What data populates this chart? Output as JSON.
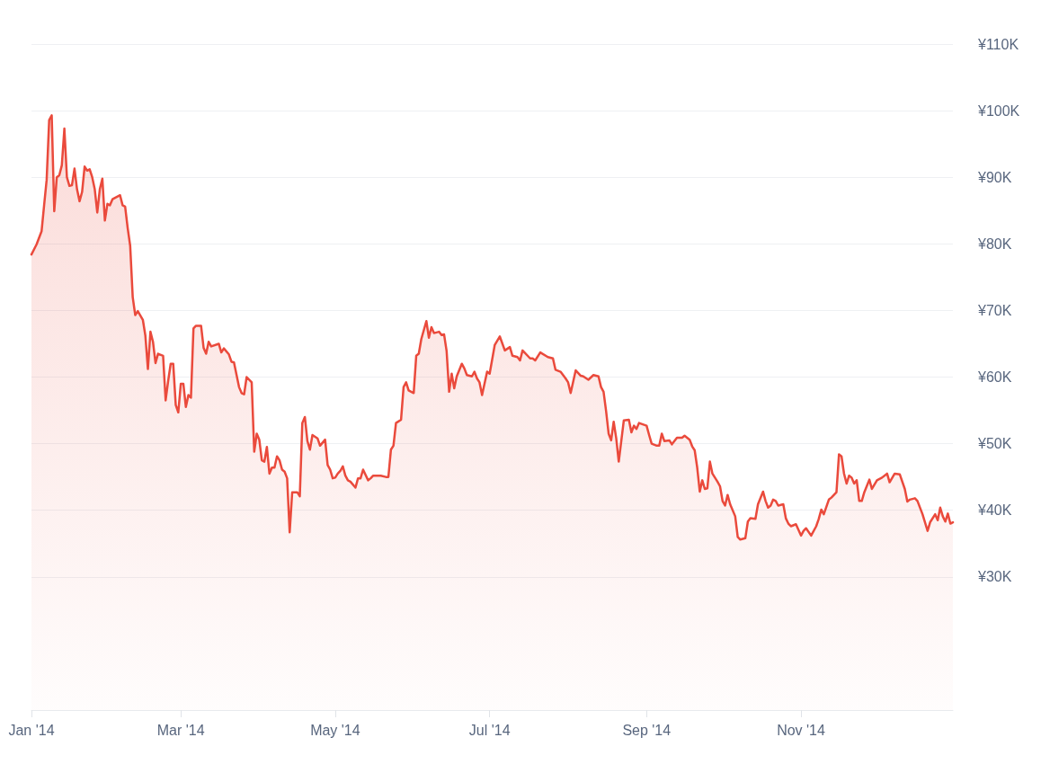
{
  "chart_data": {
    "type": "area",
    "grid": "y",
    "marker": "none",
    "line_style": "solid",
    "xlim": [
      "2014-01-01",
      "2014-12-31"
    ],
    "xticks": [
      {
        "value": "2014-01-01",
        "label": "Jan '14"
      },
      {
        "value": "2014-03-01",
        "label": "Mar '14"
      },
      {
        "value": "2014-05-01",
        "label": "May '14"
      },
      {
        "value": "2014-07-01",
        "label": "Jul '14"
      },
      {
        "value": "2014-09-01",
        "label": "Sep '14"
      },
      {
        "value": "2014-11-01",
        "label": "Nov '14"
      }
    ],
    "ylim": [
      10000,
      110000
    ],
    "yticks": [
      {
        "value": 30000,
        "label": "¥30K"
      },
      {
        "value": 40000,
        "label": "¥40K"
      },
      {
        "value": 50000,
        "label": "¥50K"
      },
      {
        "value": 60000,
        "label": "¥60K"
      },
      {
        "value": 70000,
        "label": "¥70K"
      },
      {
        "value": 80000,
        "label": "¥80K"
      },
      {
        "value": 90000,
        "label": "¥90K"
      },
      {
        "value": 100000,
        "label": "¥100K"
      },
      {
        "value": 110000,
        "label": "¥110K"
      }
    ],
    "x": [
      "2014-01-01",
      "2014-01-03",
      "2014-01-05",
      "2014-01-06",
      "2014-01-07",
      "2014-01-08",
      "2014-01-09",
      "2014-01-10",
      "2014-01-11",
      "2014-01-12",
      "2014-01-13",
      "2014-01-14",
      "2014-01-15",
      "2014-01-16",
      "2014-01-17",
      "2014-01-18",
      "2014-01-19",
      "2014-01-20",
      "2014-01-21",
      "2014-01-22",
      "2014-01-23",
      "2014-01-24",
      "2014-01-25",
      "2014-01-26",
      "2014-01-27",
      "2014-01-28",
      "2014-01-29",
      "2014-01-30",
      "2014-01-31",
      "2014-02-01",
      "2014-02-02",
      "2014-02-03",
      "2014-02-04",
      "2014-02-05",
      "2014-02-06",
      "2014-02-07",
      "2014-02-08",
      "2014-02-09",
      "2014-02-10",
      "2014-02-11",
      "2014-02-12",
      "2014-02-14",
      "2014-02-15",
      "2014-02-16",
      "2014-02-17",
      "2014-02-18",
      "2014-02-19",
      "2014-02-20",
      "2014-02-22",
      "2014-02-23",
      "2014-02-24",
      "2014-02-25",
      "2014-02-26",
      "2014-02-27",
      "2014-02-28",
      "2014-03-01",
      "2014-03-02",
      "2014-03-03",
      "2014-03-04",
      "2014-03-05",
      "2014-03-06",
      "2014-03-07",
      "2014-03-09",
      "2014-03-10",
      "2014-03-11",
      "2014-03-12",
      "2014-03-13",
      "2014-03-16",
      "2014-03-17",
      "2014-03-18",
      "2014-03-20",
      "2014-03-21",
      "2014-03-22",
      "2014-03-24",
      "2014-03-25",
      "2014-03-26",
      "2014-03-27",
      "2014-03-29",
      "2014-03-30",
      "2014-03-31",
      "2014-04-01",
      "2014-04-02",
      "2014-04-03",
      "2014-04-04",
      "2014-04-05",
      "2014-04-06",
      "2014-04-07",
      "2014-04-08",
      "2014-04-09",
      "2014-04-10",
      "2014-04-11",
      "2014-04-12",
      "2014-04-13",
      "2014-04-14",
      "2014-04-16",
      "2014-04-17",
      "2014-04-18",
      "2014-04-19",
      "2014-04-20",
      "2014-04-21",
      "2014-04-22",
      "2014-04-24",
      "2014-04-25",
      "2014-04-27",
      "2014-04-28",
      "2014-04-29",
      "2014-04-30",
      "2014-05-01",
      "2014-05-02",
      "2014-05-03",
      "2014-05-04",
      "2014-05-05",
      "2014-05-06",
      "2014-05-07",
      "2014-05-09",
      "2014-05-10",
      "2014-05-11",
      "2014-05-12",
      "2014-05-14",
      "2014-05-15",
      "2014-05-16",
      "2014-05-19",
      "2014-05-21",
      "2014-05-22",
      "2014-05-23",
      "2014-05-24",
      "2014-05-25",
      "2014-05-27",
      "2014-05-28",
      "2014-05-29",
      "2014-05-30",
      "2014-06-01",
      "2014-06-02",
      "2014-06-03",
      "2014-06-04",
      "2014-06-06",
      "2014-06-07",
      "2014-06-08",
      "2014-06-09",
      "2014-06-11",
      "2014-06-12",
      "2014-06-13",
      "2014-06-14",
      "2014-06-15",
      "2014-06-16",
      "2014-06-17",
      "2014-06-18",
      "2014-06-20",
      "2014-06-21",
      "2014-06-22",
      "2014-06-24",
      "2014-06-25",
      "2014-06-26",
      "2014-06-27",
      "2014-06-28",
      "2014-06-30",
      "2014-07-01",
      "2014-07-03",
      "2014-07-05",
      "2014-07-07",
      "2014-07-09",
      "2014-07-10",
      "2014-07-12",
      "2014-07-13",
      "2014-07-14",
      "2014-07-17",
      "2014-07-18",
      "2014-07-19",
      "2014-07-21",
      "2014-07-24",
      "2014-07-26",
      "2014-07-27",
      "2014-07-29",
      "2014-07-31",
      "2014-08-01",
      "2014-08-02",
      "2014-08-04",
      "2014-08-06",
      "2014-08-07",
      "2014-08-09",
      "2014-08-11",
      "2014-08-13",
      "2014-08-14",
      "2014-08-15",
      "2014-08-16",
      "2014-08-17",
      "2014-08-18",
      "2014-08-19",
      "2014-08-20",
      "2014-08-21",
      "2014-08-23",
      "2014-08-25",
      "2014-08-26",
      "2014-08-27",
      "2014-08-28",
      "2014-08-29",
      "2014-09-01",
      "2014-09-02",
      "2014-09-03",
      "2014-09-05",
      "2014-09-06",
      "2014-09-07",
      "2014-09-08",
      "2014-09-10",
      "2014-09-11",
      "2014-09-13",
      "2014-09-15",
      "2014-09-16",
      "2014-09-18",
      "2014-09-19",
      "2014-09-20",
      "2014-09-21",
      "2014-09-22",
      "2014-09-23",
      "2014-09-24",
      "2014-09-25",
      "2014-09-26",
      "2014-09-27",
      "2014-09-29",
      "2014-09-30",
      "2014-10-01",
      "2014-10-02",
      "2014-10-03",
      "2014-10-04",
      "2014-10-06",
      "2014-10-07",
      "2014-10-08",
      "2014-10-10",
      "2014-10-11",
      "2014-10-12",
      "2014-10-14",
      "2014-10-15",
      "2014-10-17",
      "2014-10-18",
      "2014-10-19",
      "2014-10-20",
      "2014-10-21",
      "2014-10-22",
      "2014-10-23",
      "2014-10-25",
      "2014-10-26",
      "2014-10-27",
      "2014-10-28",
      "2014-10-30",
      "2014-11-01",
      "2014-11-02",
      "2014-11-03",
      "2014-11-05",
      "2014-11-07",
      "2014-11-08",
      "2014-11-09",
      "2014-11-10",
      "2014-11-12",
      "2014-11-13",
      "2014-11-15",
      "2014-11-16",
      "2014-11-17",
      "2014-11-18",
      "2014-11-19",
      "2014-11-20",
      "2014-11-21",
      "2014-11-22",
      "2014-11-23",
      "2014-11-24",
      "2014-11-25",
      "2014-11-26",
      "2014-11-28",
      "2014-11-29",
      "2014-12-01",
      "2014-12-03",
      "2014-12-05",
      "2014-12-06",
      "2014-12-08",
      "2014-12-10",
      "2014-12-12",
      "2014-12-13",
      "2014-12-14",
      "2014-12-16",
      "2014-12-17",
      "2014-12-19",
      "2014-12-21",
      "2014-12-22",
      "2014-12-24",
      "2014-12-25",
      "2014-12-26",
      "2014-12-27",
      "2014-12-28",
      "2014-12-29",
      "2014-12-30",
      "2014-12-31"
    ],
    "series": [
      {
        "color": "#ea4a3c",
        "values": [
          78400,
          79900,
          81900,
          85800,
          89600,
          98600,
          99300,
          84900,
          90000,
          90300,
          91800,
          97300,
          90000,
          88700,
          88800,
          91300,
          88200,
          86400,
          87800,
          91600,
          91000,
          91200,
          90000,
          88200,
          84700,
          88200,
          89800,
          83500,
          86000,
          85800,
          86700,
          86900,
          87100,
          87300,
          85800,
          85600,
          82400,
          79700,
          72000,
          69300,
          69900,
          68600,
          66200,
          61200,
          66800,
          65300,
          62100,
          63500,
          63200,
          56500,
          59400,
          62000,
          62000,
          55800,
          54700,
          59000,
          59000,
          55500,
          57300,
          56900,
          67300,
          67700,
          67700,
          64400,
          63500,
          65300,
          64600,
          65000,
          63700,
          64300,
          63400,
          62300,
          62200,
          58500,
          57600,
          57400,
          60000,
          59200,
          48800,
          51500,
          50600,
          47500,
          47300,
          49500,
          45500,
          46400,
          46400,
          48100,
          47500,
          46100,
          45800,
          44800,
          36700,
          42700,
          42700,
          42100,
          53100,
          54000,
          50400,
          49100,
          51300,
          50800,
          49700,
          50600,
          46800,
          46100,
          44800,
          44900,
          45500,
          45900,
          46600,
          45200,
          44500,
          44300,
          43400,
          44800,
          44800,
          46100,
          44500,
          44800,
          45200,
          45200,
          45000,
          45000,
          49100,
          49700,
          53100,
          53600,
          58500,
          59200,
          58000,
          57600,
          63200,
          63500,
          65700,
          68400,
          65900,
          67500,
          66600,
          66800,
          66300,
          66400,
          63900,
          57800,
          60500,
          58300,
          60100,
          62000,
          61300,
          60300,
          60100,
          60800,
          59800,
          59200,
          57300,
          60800,
          60500,
          64800,
          66100,
          64000,
          64500,
          63200,
          63000,
          62500,
          64000,
          62800,
          62800,
          62500,
          63700,
          63000,
          62800,
          61100,
          60800,
          59800,
          59200,
          57600,
          61000,
          60200,
          60100,
          59600,
          60300,
          60100,
          58500,
          57800,
          54900,
          51500,
          50500,
          53300,
          50800,
          47300,
          53500,
          53600,
          51700,
          52700,
          52200,
          53100,
          52700,
          51300,
          50000,
          49700,
          49700,
          51500,
          50400,
          50500,
          49900,
          50900,
          50900,
          51200,
          50600,
          49600,
          49000,
          46400,
          42800,
          44500,
          43200,
          43300,
          47300,
          45500,
          44300,
          43600,
          41400,
          40700,
          42300,
          40900,
          39100,
          36000,
          35600,
          35800,
          38300,
          38800,
          38700,
          40900,
          42800,
          41400,
          40400,
          40700,
          41600,
          41400,
          40700,
          40900,
          38800,
          38000,
          37600,
          37900,
          36200,
          36900,
          37300,
          36200,
          37600,
          38700,
          40100,
          39400,
          41600,
          41900,
          42700,
          48400,
          48100,
          45500,
          44000,
          45200,
          44900,
          44000,
          44500,
          41400,
          41400,
          42700,
          44600,
          43200,
          44500,
          44900,
          45500,
          44200,
          45500,
          45400,
          43200,
          41300,
          41600,
          41800,
          41400,
          39400,
          36900,
          38200,
          39400,
          38500,
          40400,
          39100,
          38300,
          39500,
          38000,
          38200
        ]
      }
    ]
  }
}
